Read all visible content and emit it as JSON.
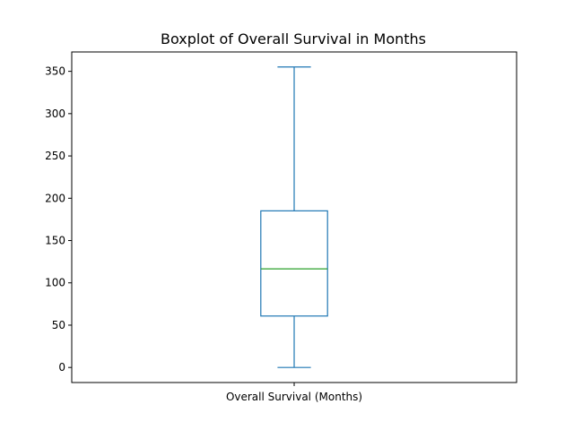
{
  "chart_data": {
    "type": "box",
    "title": "Boxplot of Overall Survival in Months",
    "categories": [
      "Overall Survival (Months)"
    ],
    "series": [
      {
        "min": 0,
        "q1": 60.8,
        "median": 116.5,
        "q3": 185.1,
        "max": 355.2
      }
    ],
    "xlabel": "",
    "ylabel": "",
    "ylim": [
      -17.8,
      372.9
    ],
    "yticks": [
      0,
      50,
      100,
      150,
      200,
      250,
      300,
      350
    ],
    "grid": false,
    "colors": {
      "box": "#1f77b4",
      "median": "#2ca02c",
      "axes": "#000000"
    }
  }
}
